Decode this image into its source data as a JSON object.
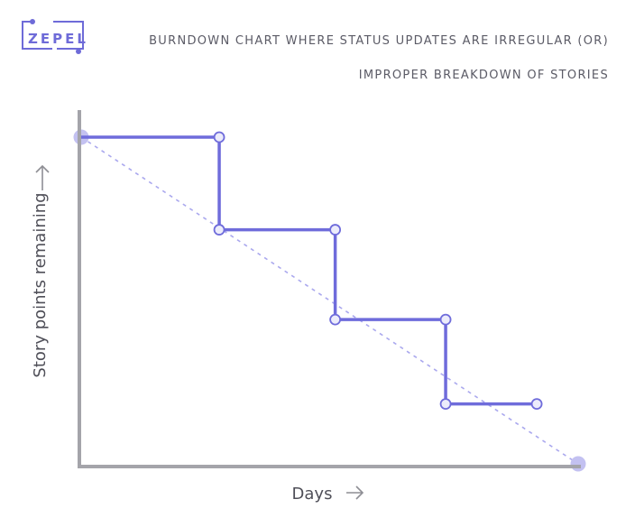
{
  "logo": {
    "text": "ZEPEL"
  },
  "chart_data": {
    "type": "line",
    "title": "BURNDOWN CHART WHERE STATUS UPDATES ARE IRREGULAR (OR)",
    "subtitle": "IMPROPER BREAKDOWN OF STORIES",
    "xlabel": "Days",
    "ylabel": "Story points remaining",
    "xlim": [
      0,
      18
    ],
    "ylim": [
      0,
      12
    ],
    "grid": false,
    "axis_ticks": false,
    "series": [
      {
        "role": "ideal",
        "style": "dashed",
        "points": [
          [
            0,
            12
          ],
          [
            18,
            0
          ]
        ]
      },
      {
        "role": "actual",
        "style": "step",
        "points": [
          [
            0,
            12
          ],
          [
            5,
            12
          ],
          [
            5,
            8.6
          ],
          [
            9.2,
            8.6
          ],
          [
            9.2,
            5.3
          ],
          [
            13.2,
            5.3
          ],
          [
            13.2,
            2.2
          ],
          [
            16.5,
            2.2
          ]
        ]
      }
    ],
    "colors": {
      "actual": "#6f6cdb",
      "ideal": "#aaa8ee",
      "marker_fill": "#ececfb",
      "endpoint": "#c3c1f1",
      "axis": "#a4a4aa",
      "logo": "#6e6bd8",
      "text": "#5b5b66",
      "label": "#4f4f58",
      "arrow": "#8e8e94"
    }
  }
}
